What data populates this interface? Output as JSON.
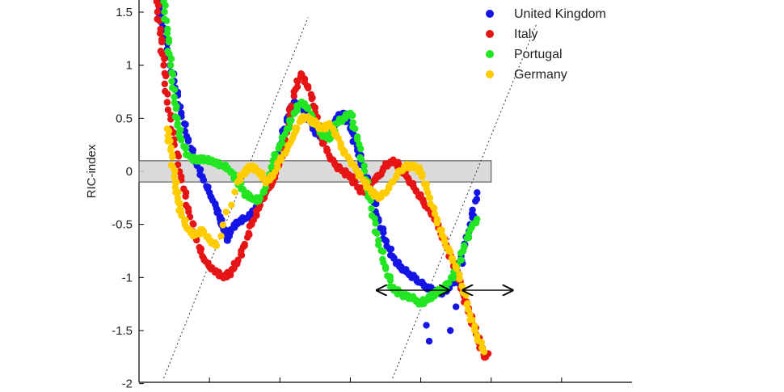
{
  "chart_data": {
    "type": "scatter",
    "ylabel": "RIC-index",
    "ylim": [
      -2,
      1.6
    ],
    "yticks": [
      1.5,
      1,
      0.5,
      0,
      -0.5,
      -1,
      -1.5,
      -2
    ],
    "ytick_labels": [
      "1.5",
      "1",
      "0.5",
      "0",
      "-0.5",
      "-1",
      "-1.5",
      "-2"
    ],
    "xlim": [
      0,
      7
    ],
    "xticks": [
      1,
      2,
      3,
      4,
      5,
      6
    ],
    "grid": false,
    "legend_position": "top-right",
    "band": {
      "x": [
        0,
        5
      ],
      "y": [
        -0.1,
        0.1
      ],
      "color": "#d3d3d3"
    },
    "series": [
      {
        "name": "United Kingdom",
        "color": "#1414e6",
        "points": [
          [
            0.28,
            1.6
          ],
          [
            0.32,
            1.4
          ],
          [
            0.4,
            1.15
          ],
          [
            0.5,
            0.85
          ],
          [
            0.6,
            0.55
          ],
          [
            0.7,
            0.3
          ],
          [
            0.8,
            0.1
          ],
          [
            0.9,
            -0.05
          ],
          [
            1.0,
            -0.2
          ],
          [
            1.1,
            -0.35
          ],
          [
            1.15,
            -0.45
          ],
          [
            1.2,
            -0.55
          ],
          [
            1.25,
            -0.65
          ],
          [
            1.3,
            -0.55
          ],
          [
            1.4,
            -0.48
          ],
          [
            1.5,
            -0.45
          ],
          [
            1.6,
            -0.4
          ],
          [
            1.7,
            -0.3
          ],
          [
            1.8,
            -0.2
          ],
          [
            1.9,
            0.0
          ],
          [
            2.0,
            0.25
          ],
          [
            2.1,
            0.5
          ],
          [
            2.2,
            0.65
          ],
          [
            2.3,
            0.6
          ],
          [
            2.4,
            0.5
          ],
          [
            2.5,
            0.38
          ],
          [
            2.6,
            0.3
          ],
          [
            2.7,
            0.35
          ],
          [
            2.8,
            0.5
          ],
          [
            2.9,
            0.55
          ],
          [
            3.0,
            0.4
          ],
          [
            3.1,
            0.2
          ],
          [
            3.2,
            0.0
          ],
          [
            3.3,
            -0.2
          ],
          [
            3.4,
            -0.45
          ],
          [
            3.5,
            -0.65
          ],
          [
            3.6,
            -0.8
          ],
          [
            3.7,
            -0.9
          ],
          [
            3.8,
            -0.95
          ],
          [
            3.9,
            -1.0
          ],
          [
            4.0,
            -1.05
          ],
          [
            4.1,
            -1.1
          ],
          [
            4.2,
            -1.12
          ],
          [
            4.3,
            -1.15
          ],
          [
            4.4,
            -1.1
          ],
          [
            4.5,
            -1.0
          ],
          [
            4.6,
            -0.75
          ],
          [
            4.7,
            -0.5
          ],
          [
            4.8,
            -0.2
          ],
          [
            4.12,
            -1.6
          ],
          [
            4.08,
            -1.45
          ],
          [
            4.42,
            -1.5
          ]
        ]
      },
      {
        "name": "Italy",
        "color": "#e61414",
        "points": [
          [
            0.25,
            1.6
          ],
          [
            0.3,
            1.3
          ],
          [
            0.35,
            1.0
          ],
          [
            0.4,
            0.65
          ],
          [
            0.5,
            0.3
          ],
          [
            0.6,
            -0.05
          ],
          [
            0.7,
            -0.35
          ],
          [
            0.8,
            -0.6
          ],
          [
            0.9,
            -0.8
          ],
          [
            1.0,
            -0.9
          ],
          [
            1.1,
            -0.95
          ],
          [
            1.2,
            -1.0
          ],
          [
            1.3,
            -0.95
          ],
          [
            1.4,
            -0.85
          ],
          [
            1.5,
            -0.7
          ],
          [
            1.6,
            -0.5
          ],
          [
            1.7,
            -0.35
          ],
          [
            1.8,
            -0.2
          ],
          [
            1.9,
            -0.1
          ],
          [
            2.0,
            0.1
          ],
          [
            2.1,
            0.4
          ],
          [
            2.2,
            0.75
          ],
          [
            2.3,
            0.92
          ],
          [
            2.4,
            0.8
          ],
          [
            2.5,
            0.6
          ],
          [
            2.6,
            0.3
          ],
          [
            2.7,
            0.15
          ],
          [
            2.8,
            0.05
          ],
          [
            2.9,
            0.0
          ],
          [
            3.0,
            -0.05
          ],
          [
            3.1,
            -0.15
          ],
          [
            3.2,
            -0.2
          ],
          [
            3.3,
            -0.1
          ],
          [
            3.4,
            -0.05
          ],
          [
            3.5,
            0.05
          ],
          [
            3.6,
            0.1
          ],
          [
            3.7,
            0.05
          ],
          [
            3.8,
            -0.05
          ],
          [
            3.9,
            -0.15
          ],
          [
            4.0,
            -0.25
          ],
          [
            4.1,
            -0.35
          ],
          [
            4.2,
            -0.45
          ],
          [
            4.3,
            -0.6
          ],
          [
            4.4,
            -0.75
          ],
          [
            4.5,
            -0.95
          ],
          [
            4.6,
            -1.15
          ],
          [
            4.7,
            -1.35
          ],
          [
            4.8,
            -1.55
          ],
          [
            4.9,
            -1.75
          ],
          [
            4.95,
            -1.72
          ]
        ]
      },
      {
        "name": "Portugal",
        "color": "#22e622",
        "points": [
          [
            0.35,
            1.6
          ],
          [
            0.4,
            1.3
          ],
          [
            0.45,
            1.0
          ],
          [
            0.5,
            0.7
          ],
          [
            0.55,
            0.45
          ],
          [
            0.6,
            0.3
          ],
          [
            0.7,
            0.15
          ],
          [
            0.8,
            0.1
          ],
          [
            0.9,
            0.12
          ],
          [
            1.0,
            0.1
          ],
          [
            1.1,
            0.08
          ],
          [
            1.2,
            0.05
          ],
          [
            1.3,
            0.0
          ],
          [
            1.4,
            -0.1
          ],
          [
            1.5,
            -0.2
          ],
          [
            1.6,
            -0.25
          ],
          [
            1.7,
            -0.28
          ],
          [
            1.8,
            -0.15
          ],
          [
            1.9,
            0.1
          ],
          [
            2.0,
            0.25
          ],
          [
            2.1,
            0.4
          ],
          [
            2.2,
            0.55
          ],
          [
            2.3,
            0.65
          ],
          [
            2.4,
            0.6
          ],
          [
            2.5,
            0.45
          ],
          [
            2.6,
            0.35
          ],
          [
            2.7,
            0.3
          ],
          [
            2.8,
            0.45
          ],
          [
            2.9,
            0.5
          ],
          [
            3.0,
            0.55
          ],
          [
            3.1,
            0.3
          ],
          [
            3.2,
            0.0
          ],
          [
            3.3,
            -0.35
          ],
          [
            3.4,
            -0.65
          ],
          [
            3.5,
            -0.9
          ],
          [
            3.6,
            -1.1
          ],
          [
            3.7,
            -1.15
          ],
          [
            3.8,
            -1.18
          ],
          [
            3.9,
            -1.2
          ],
          [
            4.0,
            -1.25
          ],
          [
            4.1,
            -1.2
          ],
          [
            4.2,
            -1.15
          ],
          [
            4.3,
            -1.12
          ],
          [
            4.4,
            -1.05
          ],
          [
            4.5,
            -0.95
          ],
          [
            4.6,
            -0.75
          ],
          [
            4.7,
            -0.55
          ],
          [
            4.8,
            -0.45
          ]
        ]
      },
      {
        "name": "Germany",
        "color": "#ffcc00",
        "points": [
          [
            0.4,
            0.4
          ],
          [
            0.45,
            0.2
          ],
          [
            0.5,
            -0.05
          ],
          [
            0.55,
            -0.25
          ],
          [
            0.6,
            -0.4
          ],
          [
            0.7,
            -0.55
          ],
          [
            0.8,
            -0.6
          ],
          [
            0.9,
            -0.55
          ],
          [
            1.0,
            -0.65
          ],
          [
            1.1,
            -0.7
          ],
          [
            1.4,
            -0.1
          ],
          [
            1.5,
            0.0
          ],
          [
            1.6,
            0.05
          ],
          [
            1.7,
            0.0
          ],
          [
            1.8,
            -0.1
          ],
          [
            1.9,
            -0.05
          ],
          [
            2.0,
            0.1
          ],
          [
            2.1,
            0.2
          ],
          [
            2.2,
            0.35
          ],
          [
            2.3,
            0.5
          ],
          [
            2.4,
            0.5
          ],
          [
            2.5,
            0.45
          ],
          [
            2.6,
            0.4
          ],
          [
            2.7,
            0.45
          ],
          [
            2.8,
            0.35
          ],
          [
            2.9,
            0.2
          ],
          [
            3.0,
            0.1
          ],
          [
            3.1,
            0.0
          ],
          [
            3.2,
            -0.1
          ],
          [
            3.3,
            -0.2
          ],
          [
            3.4,
            -0.25
          ],
          [
            3.5,
            -0.2
          ],
          [
            3.6,
            -0.1
          ],
          [
            3.7,
            0.0
          ],
          [
            3.8,
            0.05
          ],
          [
            3.9,
            0.05
          ],
          [
            4.0,
            0.0
          ],
          [
            4.1,
            -0.2
          ],
          [
            4.2,
            -0.4
          ],
          [
            4.3,
            -0.6
          ],
          [
            4.4,
            -0.75
          ],
          [
            4.5,
            -0.9
          ],
          [
            4.6,
            -1.1
          ],
          [
            4.7,
            -1.35
          ],
          [
            4.8,
            -1.55
          ],
          [
            4.9,
            -1.7
          ]
        ]
      }
    ],
    "reference_lines": [
      {
        "from": [
          0.35,
          -1.95
        ],
        "to": [
          2.4,
          1.45
        ]
      },
      {
        "from": [
          3.6,
          -1.95
        ],
        "to": [
          5.65,
          1.4
        ]
      }
    ],
    "arrows": [
      {
        "from": [
          3.38,
          -1.12
        ],
        "to": [
          4.4,
          -1.12
        ]
      },
      {
        "from": [
          4.6,
          -1.12
        ],
        "to": [
          5.3,
          -1.12
        ]
      }
    ]
  }
}
